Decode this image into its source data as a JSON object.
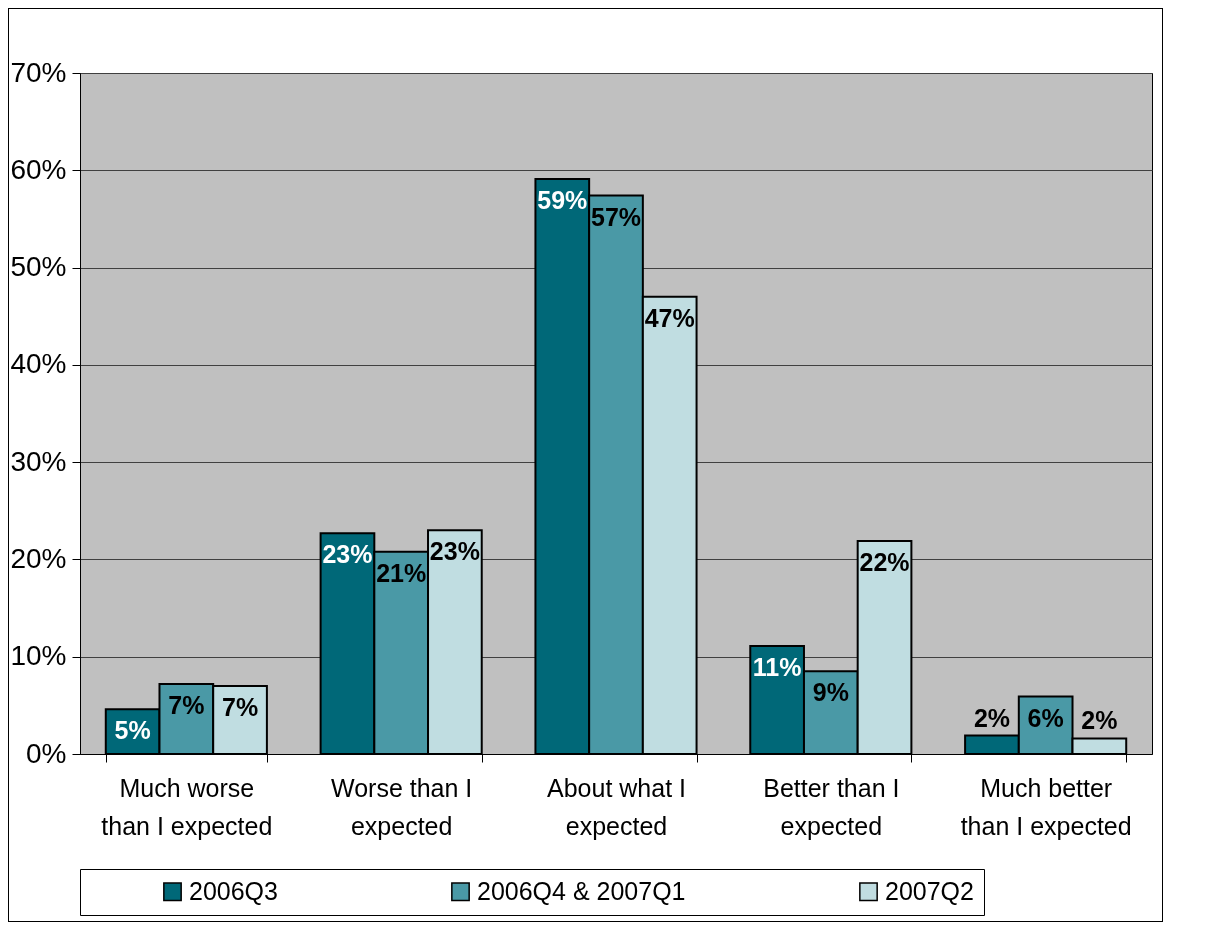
{
  "chart_data": {
    "type": "bar",
    "categories": [
      "Much worse\nthan I expected",
      "Worse than I\nexpected",
      "About what I\nexpected",
      "Better than I\nexpected",
      "Much better\nthan I expected"
    ],
    "series": [
      {
        "name": "2006Q3",
        "color": "#006878",
        "values": [
          4.6,
          22.7,
          59.1,
          11.1,
          1.9
        ],
        "value_labels": [
          "5%",
          "23%",
          "59%",
          "11%",
          "2%"
        ]
      },
      {
        "name": "2006Q4 & 2007Q1",
        "color": "#4a99a6",
        "values": [
          7.2,
          20.8,
          57.4,
          8.5,
          5.9
        ],
        "value_labels": [
          "7%",
          "21%",
          "57%",
          "9%",
          "6%"
        ]
      },
      {
        "name": "2007Q2",
        "color": "#c0dde1",
        "values": [
          7.0,
          23.0,
          47.0,
          21.9,
          1.6
        ],
        "value_labels": [
          "7%",
          "23%",
          "47%",
          "22%",
          "2%"
        ]
      }
    ],
    "ylim": [
      0,
      70
    ],
    "yticks": [
      {
        "value": 0,
        "label": "0%"
      },
      {
        "value": 10,
        "label": "10%"
      },
      {
        "value": 20,
        "label": "20%"
      },
      {
        "value": 30,
        "label": "30%"
      },
      {
        "value": 40,
        "label": "40%"
      },
      {
        "value": 50,
        "label": "50%"
      },
      {
        "value": 60,
        "label": "60%"
      },
      {
        "value": 70,
        "label": "70%"
      }
    ],
    "grid": "y",
    "legend": "bottom"
  }
}
